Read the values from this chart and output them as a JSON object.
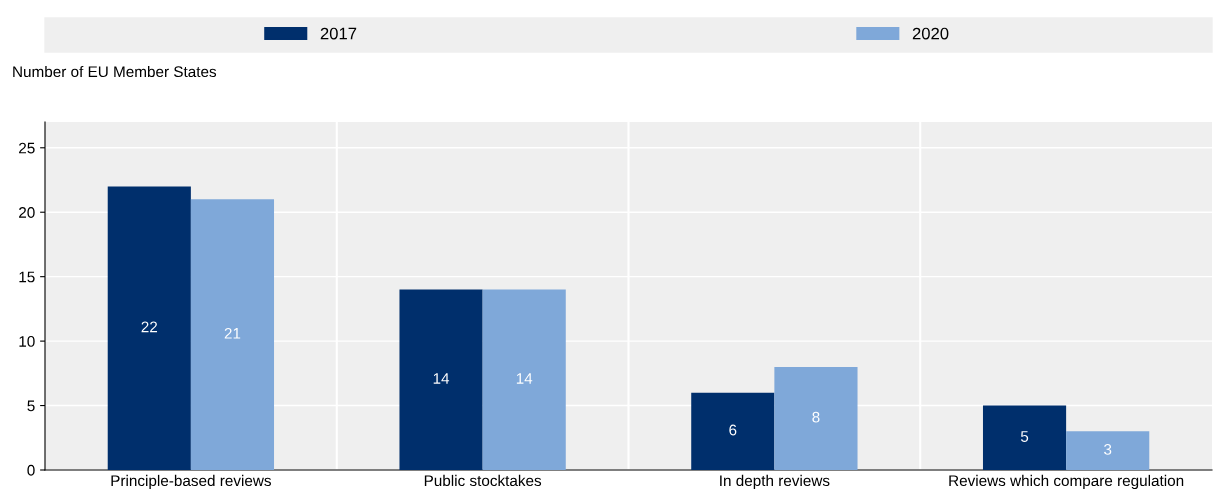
{
  "chart_data": {
    "type": "bar",
    "ylabel": "Number of EU Member States",
    "categories": [
      "Principle-based reviews",
      "Public stocktakes",
      "In depth reviews",
      "Reviews which compare regulation"
    ],
    "series": [
      {
        "name": "2017",
        "color": "#002f6c",
        "values": [
          22,
          14,
          6,
          5
        ]
      },
      {
        "name": "2020",
        "color": "#7fa8d9",
        "values": [
          21,
          14,
          8,
          3
        ]
      }
    ],
    "ylim": [
      0,
      27
    ],
    "yticks": [
      0,
      5,
      10,
      15,
      20,
      25
    ],
    "grid": true,
    "legend": "top",
    "data_labels": true
  }
}
